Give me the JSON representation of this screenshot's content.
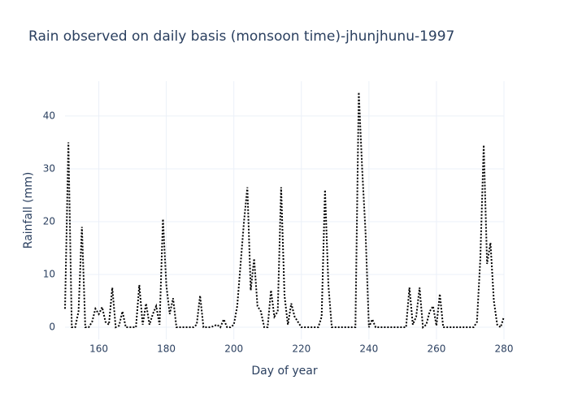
{
  "chart_data": {
    "type": "line",
    "title": "Rain observed on daily basis (monsoon time)-jhunjhunu-1997",
    "x_label": "Day of year",
    "y_label": "Rainfall (mm)",
    "x": [
      150,
      151,
      152,
      153,
      154,
      155,
      156,
      157,
      158,
      159,
      160,
      161,
      162,
      163,
      164,
      165,
      166,
      167,
      168,
      169,
      170,
      171,
      172,
      173,
      174,
      175,
      176,
      177,
      178,
      179,
      180,
      181,
      182,
      183,
      184,
      185,
      186,
      187,
      188,
      189,
      190,
      191,
      192,
      193,
      194,
      195,
      196,
      197,
      198,
      199,
      200,
      201,
      202,
      203,
      204,
      205,
      206,
      207,
      208,
      209,
      210,
      211,
      212,
      213,
      214,
      215,
      216,
      217,
      218,
      219,
      220,
      221,
      222,
      223,
      224,
      225,
      226,
      227,
      228,
      229,
      230,
      231,
      232,
      233,
      234,
      235,
      236,
      237,
      238,
      239,
      240,
      241,
      242,
      243,
      244,
      245,
      246,
      247,
      248,
      249,
      250,
      251,
      252,
      253,
      254,
      255,
      256,
      257,
      258,
      259,
      260,
      261,
      262,
      263,
      264,
      265,
      266,
      267,
      268,
      269,
      270,
      271,
      272,
      273,
      274,
      275,
      276,
      277,
      278,
      279,
      280
    ],
    "values": [
      3.5,
      35,
      0,
      0,
      3,
      19,
      0,
      0,
      1,
      3.5,
      2.5,
      3.8,
      1,
      0.5,
      7.5,
      0,
      0.3,
      3,
      0,
      0,
      0,
      0,
      8,
      0.5,
      4.5,
      0.5,
      2.5,
      4,
      0.5,
      20.5,
      8,
      2.5,
      5.5,
      0,
      0,
      0,
      0,
      0,
      0,
      0.5,
      6,
      0,
      0,
      0,
      0.2,
      0.5,
      0,
      1.5,
      0,
      0,
      0.5,
      4,
      12,
      20,
      26.5,
      7,
      13,
      4,
      3,
      0,
      0,
      7,
      2,
      3,
      26.5,
      6,
      0.5,
      4.5,
      2,
      1,
      0,
      0,
      0,
      0,
      0,
      0,
      2,
      26,
      8,
      0,
      0,
      0,
      0,
      0,
      0,
      0,
      0,
      44.5,
      30,
      18,
      0,
      1.5,
      0,
      0,
      0,
      0,
      0,
      0,
      0,
      0,
      0,
      0,
      7.5,
      0.5,
      2,
      7.5,
      0,
      0.5,
      3,
      4,
      0.3,
      6.3,
      0,
      0,
      0,
      0,
      0,
      0,
      0,
      0,
      0,
      0,
      1,
      13,
      34.5,
      12,
      16,
      5,
      0.5,
      0,
      2
    ],
    "color": "#000000",
    "xlim": [
      150,
      280
    ],
    "xticks": [
      160,
      180,
      200,
      220,
      240,
      260,
      280
    ],
    "ylim": [
      -2.3,
      46.6
    ],
    "yticks": [
      0,
      10,
      20,
      30,
      40
    ],
    "grid": true
  }
}
